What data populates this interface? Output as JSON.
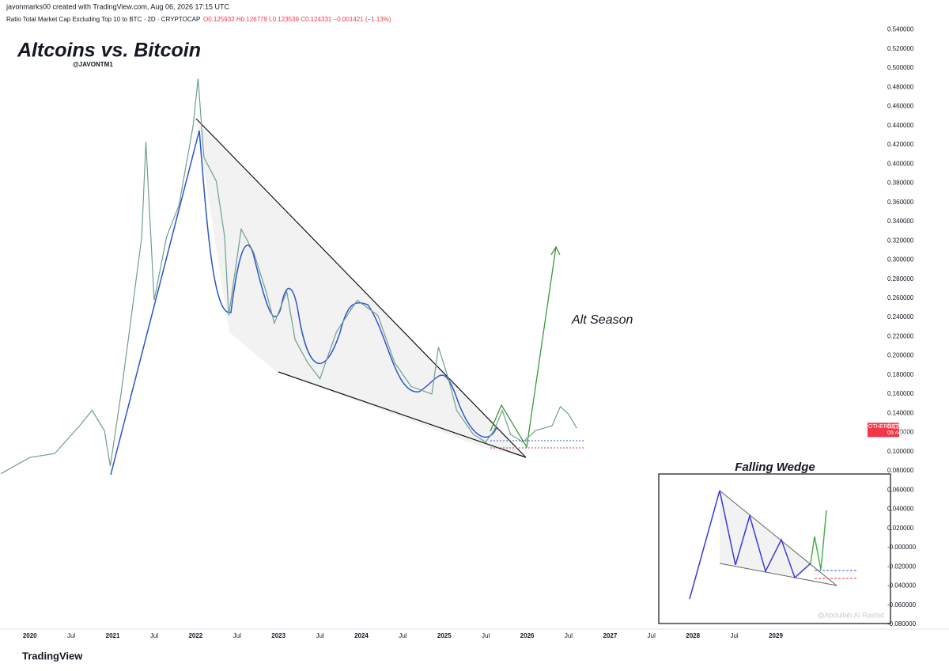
{
  "header": {
    "credit": "javonmarks00 created with TradingView.com, Aug 06, 2026 17:15 UTC",
    "symbol": "Ratio Total Market Cap Excluding Top 10 to BTC · 2D · CRYPTOCAP",
    "ohlc": "O0.125932 H0.126779 L0.123539 C0.124331 −0.001421 (−1.13%)"
  },
  "chart_data": {
    "type": "line",
    "title": "Altcoins vs. Bitcoin",
    "subtitle": "@JAVONTM1",
    "annotations": [
      "Alt Season",
      "Falling Wedge",
      "@Abdullah Al Rashid"
    ],
    "x": [
      2019.65,
      2020.0,
      2020.3,
      2020.6,
      2020.75,
      2020.9,
      2020.97,
      2021.1,
      2021.2,
      2021.35,
      2021.4,
      2021.5,
      2021.65,
      2021.8,
      2021.97,
      2022.03,
      2022.1,
      2022.25,
      2022.35,
      2022.4,
      2022.55,
      2022.7,
      2022.85,
      2022.95,
      2023.1,
      2023.2,
      2023.35,
      2023.5,
      2023.7,
      2023.95,
      2024.2,
      2024.4,
      2024.6,
      2024.85,
      2024.93,
      2025.05,
      2025.15,
      2025.35,
      2025.5,
      2025.6,
      2025.7,
      2025.8,
      2025.95,
      2026.1,
      2026.3,
      2026.4,
      2026.5,
      2026.6
    ],
    "series": [
      {
        "name": "OTHERSBTC",
        "color": "#6f9f8f",
        "values": [
          0.077,
          0.094,
          0.098,
          0.127,
          0.143,
          0.122,
          0.085,
          0.16,
          0.225,
          0.324,
          0.423,
          0.258,
          0.324,
          0.357,
          0.44,
          0.489,
          0.407,
          0.382,
          0.324,
          0.242,
          0.332,
          0.308,
          0.267,
          0.234,
          0.267,
          0.217,
          0.193,
          0.176,
          0.225,
          0.258,
          0.242,
          0.193,
          0.168,
          0.16,
          0.209,
          0.176,
          0.143,
          0.118,
          0.11,
          0.122,
          0.143,
          0.118,
          0.11,
          0.122,
          0.127,
          0.147,
          0.139,
          0.124331
        ]
      }
    ],
    "last_price": {
      "value": 0.124331,
      "label": "0.124331",
      "countdown": "06:44:56",
      "color": "#f23645"
    },
    "xlim": [
      2019.64,
      2030.04
    ],
    "xticks": [
      2020,
      {
        "value": 2020.5,
        "label": "Jul"
      },
      2021,
      {
        "value": 2021.5,
        "label": "Jul"
      },
      2022,
      {
        "value": 2022.5,
        "label": "Jul"
      },
      2023,
      {
        "value": 2023.5,
        "label": "Jul"
      },
      2024,
      {
        "value": 2024.5,
        "label": "Jul"
      },
      2025,
      {
        "value": 2025.5,
        "label": "Jul"
      },
      2026,
      {
        "value": 2026.5,
        "label": "Jul"
      },
      2027,
      {
        "value": 2027.5,
        "label": "Jul"
      },
      2028,
      {
        "value": 2028.5,
        "label": "Jul"
      },
      2029
    ],
    "ylim": [
      -0.085,
      0.571
    ],
    "yticks": [
      {
        "value": -0.08,
        "label": "-0.080000"
      },
      {
        "value": -0.06,
        "label": "-0.060000"
      },
      {
        "value": -0.04,
        "label": "-0.040000"
      },
      {
        "value": -0.02,
        "label": "-0.020000"
      },
      {
        "value": 0,
        "label": "-0.000000"
      },
      {
        "value": 0.02,
        "label": "0.020000"
      },
      {
        "value": 0.04,
        "label": "0.040000"
      },
      {
        "value": 0.06,
        "label": "0.060000"
      },
      {
        "value": 0.08,
        "label": "0.080000"
      },
      {
        "value": 0.1,
        "label": "0.100000"
      },
      {
        "value": 0.12,
        "label": "0.120000"
      },
      {
        "value": 0.14,
        "label": "0.140000"
      },
      {
        "value": 0.16,
        "label": "0.160000"
      },
      {
        "value": 0.18,
        "label": "0.180000"
      },
      {
        "value": 0.2,
        "label": "0.200000"
      },
      {
        "value": 0.22,
        "label": "0.220000"
      },
      {
        "value": 0.24,
        "label": "0.240000"
      },
      {
        "value": 0.26,
        "label": "0.260000"
      },
      {
        "value": 0.28,
        "label": "0.280000"
      },
      {
        "value": 0.3,
        "label": "0.300000"
      },
      {
        "value": 0.32,
        "label": "0.320000"
      },
      {
        "value": 0.34,
        "label": "0.340000"
      },
      {
        "value": 0.36,
        "label": "0.360000"
      },
      {
        "value": 0.38,
        "label": "0.380000"
      },
      {
        "value": 0.4,
        "label": "0.400000"
      },
      {
        "value": 0.42,
        "label": "0.420000"
      },
      {
        "value": 0.44,
        "label": "0.440000"
      },
      {
        "value": 0.46,
        "label": "0.460000"
      },
      {
        "value": 0.48,
        "label": "0.480000"
      },
      {
        "value": 0.5,
        "label": "0.500000"
      },
      {
        "value": 0.52,
        "label": "0.520000"
      },
      {
        "value": 0.54,
        "label": "0.540000"
      }
    ],
    "grid": false
  },
  "footer": {
    "brand": "TradingView"
  }
}
